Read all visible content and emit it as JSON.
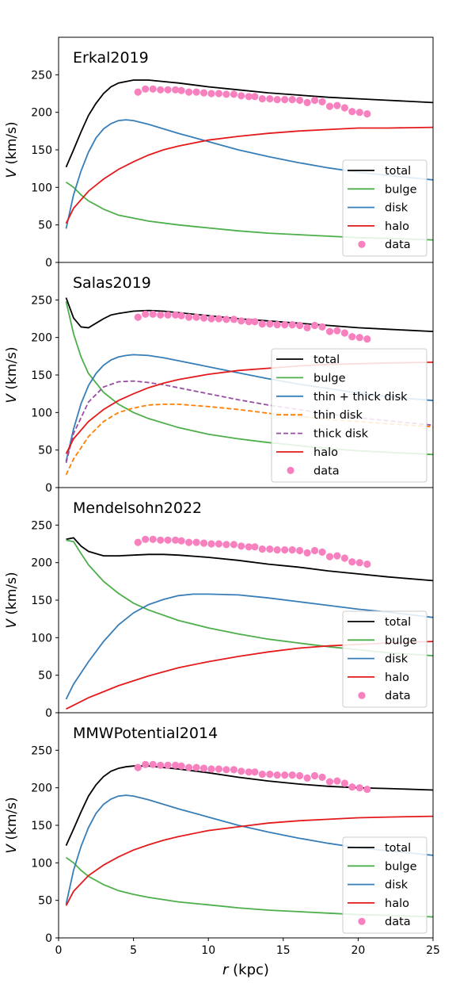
{
  "chart_data": {
    "type": "line",
    "x_axis": {
      "label_prefix": "r",
      "label_suffix": " (kpc)",
      "xlim": [
        0,
        25
      ],
      "ticks": [
        0,
        5,
        10,
        15,
        20,
        25
      ]
    },
    "y_axis": {
      "label_prefix": "V",
      "label_suffix": " (km/s)",
      "ylim": [
        0,
        300
      ],
      "ticks": [
        0,
        50,
        100,
        150,
        200,
        250
      ]
    },
    "colors": {
      "total": "#000000",
      "bulge": "#4daf4a",
      "disk": "#377eb8",
      "halo": "#e41a1c",
      "thin": "#ff7f00",
      "thick": "#984ea3",
      "data": "#f781bf"
    },
    "observed_data": {
      "name": "data",
      "x": [
        5.3,
        5.8,
        6.3,
        6.8,
        7.3,
        7.8,
        8.2,
        8.7,
        9.2,
        9.7,
        10.2,
        10.7,
        11.2,
        11.7,
        12.2,
        12.7,
        13.1,
        13.6,
        14.1,
        14.6,
        15.1,
        15.6,
        16.1,
        16.6,
        17.1,
        17.6,
        18.1,
        18.6,
        19.1,
        19.6,
        20.1,
        20.6
      ],
      "y": [
        227,
        231,
        231,
        230,
        230,
        230,
        229,
        227,
        227,
        226,
        225,
        225,
        224,
        224,
        222,
        221,
        221,
        218,
        218,
        217,
        217,
        217,
        216,
        213,
        216,
        214,
        208,
        209,
        206,
        201,
        200,
        198
      ]
    },
    "panels": [
      {
        "title": "Erkal2019",
        "series": [
          {
            "name": "total",
            "color_key": "total",
            "style": "solid",
            "x": [
              0.5,
              1,
              1.5,
              2,
              2.5,
              3,
              3.5,
              4,
              5,
              6,
              7,
              8,
              10,
              12,
              14,
              16,
              18,
              20,
              22,
              25
            ],
            "y": [
              127,
              150,
              174,
              196,
              212,
              225,
              234,
              239,
              243,
              243,
              241,
              239,
              234,
              230,
              226,
              223,
              220,
              218,
              216,
              213
            ]
          },
          {
            "name": "bulge",
            "color_key": "bulge",
            "style": "solid",
            "x": [
              0.5,
              1,
              1.5,
              2,
              3,
              4,
              5,
              6,
              8,
              10,
              12,
              14,
              16,
              18,
              20,
              22,
              25
            ],
            "y": [
              107,
              100,
              90,
              82,
              71,
              63,
              59,
              55,
              50,
              46,
              42,
              39,
              37,
              35,
              33,
              32,
              30
            ]
          },
          {
            "name": "disk",
            "color_key": "disk",
            "style": "solid",
            "x": [
              0.5,
              1,
              1.5,
              2,
              2.5,
              3,
              3.5,
              4,
              4.5,
              5,
              6,
              7,
              8,
              10,
              12,
              14,
              16,
              18,
              20,
              22,
              25
            ],
            "y": [
              45,
              90,
              122,
              147,
              166,
              178,
              185,
              189,
              190,
              189,
              184,
              178,
              172,
              161,
              150,
              141,
              133,
              126,
              120,
              116,
              110
            ]
          },
          {
            "name": "halo",
            "color_key": "halo",
            "style": "solid",
            "x": [
              0.5,
              1,
              2,
              3,
              4,
              5,
              6,
              7,
              8,
              10,
              12,
              14,
              16,
              18,
              20,
              22,
              25
            ],
            "y": [
              52,
              72,
              95,
              111,
              124,
              134,
              143,
              150,
              155,
              163,
              168,
              172,
              175,
              177,
              179,
              179,
              180
            ]
          }
        ]
      },
      {
        "title": "Salas2019",
        "series": [
          {
            "name": "total",
            "color_key": "total",
            "style": "solid",
            "x": [
              0.5,
              1,
              1.5,
              2,
              2.5,
              3,
              3.5,
              4,
              5,
              6,
              7,
              8,
              10,
              12,
              14,
              16,
              18,
              20,
              22,
              25
            ],
            "y": [
              253,
              226,
              214,
              213,
              219,
              225,
              230,
              232,
              235,
              236,
              235,
              233,
              229,
              225,
              222,
              219,
              216,
              213,
              211,
              208
            ]
          },
          {
            "name": "bulge",
            "color_key": "bulge",
            "style": "solid",
            "x": [
              0.5,
              1,
              1.5,
              2,
              3,
              4,
              5,
              6,
              8,
              10,
              12,
              14,
              16,
              18,
              20,
              22,
              25
            ],
            "y": [
              248,
              205,
              174,
              152,
              127,
              111,
              100,
              92,
              80,
              71,
              65,
              60,
              56,
              52,
              49,
              47,
              44
            ]
          },
          {
            "name": "thin + thick disk",
            "color_key": "disk",
            "style": "solid",
            "x": [
              0.5,
              1,
              1.5,
              2,
              2.5,
              3,
              3.5,
              4,
              4.5,
              5,
              6,
              7,
              8,
              10,
              12,
              14,
              16,
              18,
              20,
              22,
              25
            ],
            "y": [
              35,
              78,
              112,
              136,
              152,
              163,
              170,
              174,
              176,
              177,
              176,
              173,
              169,
              161,
              153,
              145,
              138,
              132,
              126,
              121,
              116
            ]
          },
          {
            "name": "thin disk",
            "color_key": "thin",
            "style": "dashed",
            "x": [
              0.5,
              1,
              2,
              3,
              4,
              5,
              6,
              7,
              8,
              10,
              12,
              14,
              16,
              18,
              20,
              22,
              25
            ],
            "y": [
              17,
              38,
              68,
              88,
              100,
              106,
              110,
              111,
              111,
              108,
              104,
              99,
              95,
              91,
              88,
              85,
              81
            ]
          },
          {
            "name": "thick disk",
            "color_key": "thick",
            "style": "dashed",
            "x": [
              0.5,
              1,
              2,
              3,
              4,
              5,
              6,
              7,
              8,
              10,
              12,
              14,
              16,
              18,
              20,
              22,
              25
            ],
            "y": [
              33,
              72,
              114,
              134,
              141,
              142,
              140,
              137,
              133,
              125,
              117,
              110,
              104,
              98,
              93,
              89,
              83
            ]
          },
          {
            "name": "halo",
            "color_key": "halo",
            "style": "solid",
            "x": [
              0.5,
              1,
              2,
              3,
              4,
              5,
              6,
              7,
              8,
              10,
              12,
              14,
              16,
              18,
              20,
              22,
              25
            ],
            "y": [
              45,
              65,
              88,
              104,
              116,
              125,
              133,
              139,
              144,
              151,
              156,
              159,
              162,
              164,
              165,
              166,
              167
            ]
          }
        ]
      },
      {
        "title": "Mendelsohn2022",
        "series": [
          {
            "name": "total",
            "color_key": "total",
            "style": "solid",
            "x": [
              0.5,
              1,
              1.5,
              2,
              3,
              4,
              5,
              6,
              7,
              8,
              10,
              12,
              14,
              16,
              18,
              20,
              22,
              25
            ],
            "y": [
              231,
              233,
              222,
              215,
              209,
              209,
              210,
              211,
              211,
              210,
              207,
              203,
              198,
              194,
              189,
              185,
              181,
              176
            ]
          },
          {
            "name": "bulge",
            "color_key": "bulge",
            "style": "solid",
            "x": [
              0.5,
              1,
              1.5,
              2,
              3,
              4,
              5,
              6,
              8,
              10,
              12,
              14,
              16,
              18,
              20,
              22,
              25
            ],
            "y": [
              230,
              228,
              212,
              197,
              175,
              159,
              146,
              137,
              123,
              113,
              105,
              98,
              93,
              88,
              84,
              80,
              76
            ]
          },
          {
            "name": "disk",
            "color_key": "disk",
            "style": "solid",
            "x": [
              0.5,
              1,
              2,
              3,
              4,
              5,
              6,
              7,
              8,
              9,
              10,
              12,
              14,
              16,
              18,
              20,
              22,
              25
            ],
            "y": [
              18,
              38,
              68,
              95,
              117,
              133,
              144,
              151,
              156,
              158,
              158,
              157,
              153,
              148,
              143,
              138,
              134,
              127
            ]
          },
          {
            "name": "halo",
            "color_key": "halo",
            "style": "solid",
            "x": [
              0.5,
              2,
              4,
              6,
              8,
              10,
              12,
              14,
              16,
              18,
              20,
              22,
              25
            ],
            "y": [
              5,
              20,
              36,
              49,
              60,
              68,
              75,
              81,
              86,
              89,
              91,
              93,
              95
            ]
          }
        ]
      },
      {
        "title": "MMWPotential2014",
        "series": [
          {
            "name": "total",
            "color_key": "total",
            "style": "solid",
            "x": [
              0.5,
              1,
              1.5,
              2,
              2.5,
              3,
              3.5,
              4,
              4.5,
              5,
              6,
              7,
              8,
              10,
              12,
              14,
              16,
              18,
              20,
              22,
              25
            ],
            "y": [
              123,
              145,
              168,
              189,
              204,
              215,
              222,
              226,
              228,
              229,
              229,
              227,
              225,
              220,
              214,
              209,
              205,
              202,
              200,
              199,
              197
            ]
          },
          {
            "name": "bulge",
            "color_key": "bulge",
            "style": "solid",
            "x": [
              0.5,
              1,
              1.5,
              2,
              3,
              4,
              5,
              6,
              8,
              10,
              12,
              14,
              16,
              18,
              20,
              22,
              25
            ],
            "y": [
              107,
              100,
              90,
              82,
              71,
              63,
              58,
              54,
              48,
              44,
              40,
              37,
              35,
              33,
              31,
              30,
              28
            ]
          },
          {
            "name": "disk",
            "color_key": "disk",
            "style": "solid",
            "x": [
              0.5,
              1,
              1.5,
              2,
              2.5,
              3,
              3.5,
              4,
              4.5,
              5,
              6,
              7,
              8,
              10,
              12,
              14,
              16,
              18,
              20,
              22,
              25
            ],
            "y": [
              45,
              90,
              122,
              147,
              166,
              178,
              185,
              189,
              190,
              189,
              184,
              178,
              172,
              161,
              150,
              141,
              133,
              126,
              120,
              116,
              110
            ]
          },
          {
            "name": "halo",
            "color_key": "halo",
            "style": "solid",
            "x": [
              0.5,
              1,
              2,
              3,
              4,
              5,
              6,
              7,
              8,
              10,
              12,
              14,
              16,
              18,
              20,
              22,
              25
            ],
            "y": [
              43,
              62,
              83,
              97,
              108,
              117,
              124,
              130,
              135,
              143,
              148,
              153,
              156,
              158,
              160,
              161,
              162
            ]
          }
        ]
      }
    ]
  }
}
